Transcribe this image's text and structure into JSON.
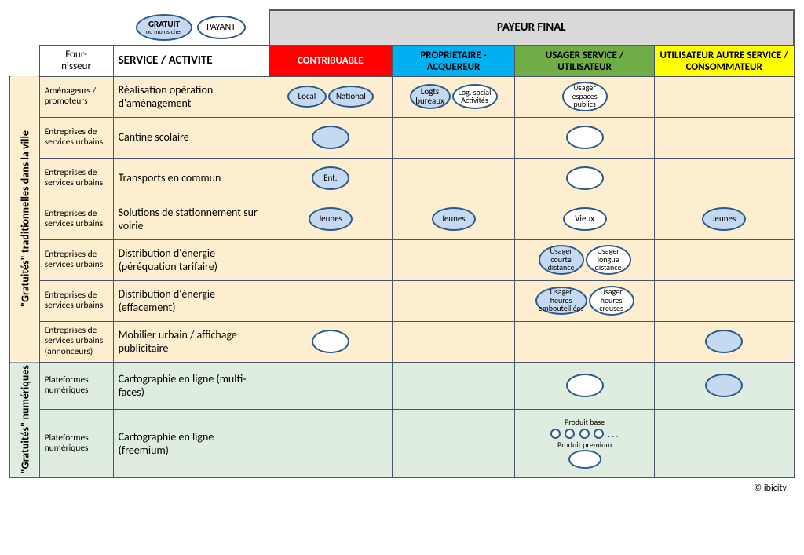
{
  "colors": {
    "border": "#4a5568",
    "oval_border": "#2e5a8a",
    "fill_gratuit": "#c5d9f1",
    "fill_payant": "#ffffff",
    "bg_trad": "#fdeecf",
    "bg_num": "#dfece0",
    "hdr_payer": "#d9d9d9",
    "hdr_contrib": "#ff0000",
    "hdr_proprio": "#00b0f0",
    "hdr_usager": "#70ad47",
    "hdr_util": "#ffff00"
  },
  "legend": {
    "gratuit_top": "GRATUIT",
    "gratuit_sub": "ou moins cher",
    "payant": "PAYANT"
  },
  "headers": {
    "payer_final": "PAYEUR FINAL",
    "fournisseur": "Four-\nnisseur",
    "service": "SERVICE / ACTIVITE",
    "contribuable": "CONTRIBUABLE",
    "proprietaire": "PROPRIETAIRE - ACQUEREUR",
    "usager": "USAGER SERVICE / UTILISATEUR",
    "utilisateur": "UTILISATEUR AUTRE SERVICE / CONSOMMATEUR"
  },
  "side": {
    "trad": "\"Gratuités\" traditionnelles dans la ville",
    "num": "\"Gratuités\" numériques"
  },
  "rows": [
    {
      "group": "trad",
      "supplier": "Aménageurs / promoteurs",
      "service": "Réalisation opération d'aménagement",
      "cells": [
        [
          {
            "t": "Local",
            "f": "g",
            "w": 50,
            "h": 28
          },
          {
            "t": "National",
            "f": "g",
            "w": 58,
            "h": 28
          }
        ],
        [
          {
            "t": "Logts bureaux",
            "f": "g",
            "w": 52,
            "h": 32
          },
          {
            "t": "Log. social Activités",
            "f": "p",
            "w": 58,
            "h": 32
          }
        ],
        [
          {
            "t": "Usager espaces publics",
            "f": "p",
            "w": 58,
            "h": 38
          }
        ],
        []
      ]
    },
    {
      "group": "trad",
      "supplier": "Entreprises de services urbains",
      "service": "Cantine scolaire",
      "cells": [
        [
          {
            "t": "",
            "f": "g",
            "w": 48,
            "h": 30
          }
        ],
        [],
        [
          {
            "t": "",
            "f": "p",
            "w": 48,
            "h": 30
          }
        ],
        []
      ]
    },
    {
      "group": "trad",
      "supplier": "Entreprises de services urbains",
      "service": "Transports en commun",
      "cells": [
        [
          {
            "t": "Ent.",
            "f": "g",
            "w": 48,
            "h": 30
          }
        ],
        [],
        [
          {
            "t": "",
            "f": "p",
            "w": 48,
            "h": 30
          }
        ],
        []
      ]
    },
    {
      "group": "trad",
      "supplier": "Entreprises de services urbains",
      "service": "Solutions de stationnement sur voirie",
      "cells": [
        [
          {
            "t": "Jeunes",
            "f": "g",
            "w": 56,
            "h": 30
          }
        ],
        [
          {
            "t": "Jeunes",
            "f": "g",
            "w": 56,
            "h": 30
          }
        ],
        [
          {
            "t": "Vieux",
            "f": "p",
            "w": 56,
            "h": 30
          }
        ],
        [
          {
            "t": "Jeunes",
            "f": "g",
            "w": 56,
            "h": 30
          }
        ]
      ]
    },
    {
      "group": "trad",
      "supplier": "Entreprises de services urbains",
      "service": "Distribution d'énergie (péréquation tarifaire)",
      "cells": [
        [],
        [],
        [
          {
            "t": "Usager courte distance",
            "f": "g",
            "w": 58,
            "h": 38
          },
          {
            "t": "Usager longue distance",
            "f": "p",
            "w": 58,
            "h": 38
          }
        ],
        []
      ]
    },
    {
      "group": "trad",
      "supplier": "Entreprises de services urbains",
      "service": "Distribution d'énergie (effacement)",
      "cells": [
        [],
        [],
        [
          {
            "t": "Usager heures embouteillées",
            "f": "g",
            "w": 66,
            "h": 36
          },
          {
            "t": "Usager heures creuses",
            "f": "p",
            "w": 58,
            "h": 38
          }
        ],
        []
      ]
    },
    {
      "group": "trad",
      "supplier": "Entreprises de services urbains (annonceurs)",
      "service": "Mobilier urbain / affichage publicitaire",
      "cells": [
        [
          {
            "t": "",
            "f": "p",
            "w": 48,
            "h": 30
          }
        ],
        [],
        [],
        [
          {
            "t": "",
            "f": "g",
            "w": 48,
            "h": 30
          }
        ]
      ]
    },
    {
      "group": "num",
      "supplier": "Plateformes numériques",
      "service": "Cartographie en ligne (multi-faces)",
      "cells": [
        [],
        [],
        [
          {
            "t": "",
            "f": "p",
            "w": 48,
            "h": 30
          }
        ],
        [
          {
            "t": "",
            "f": "g",
            "w": 48,
            "h": 30
          }
        ]
      ]
    },
    {
      "group": "num",
      "supplier": "Plateformes numériques",
      "service": "Cartographie en ligne (freemium)",
      "cells": [
        [],
        [],
        "freemium",
        []
      ]
    }
  ],
  "freemium": {
    "base_label": "Produit base",
    "premium_label": "Produit premium"
  },
  "credit": "© ibicity"
}
